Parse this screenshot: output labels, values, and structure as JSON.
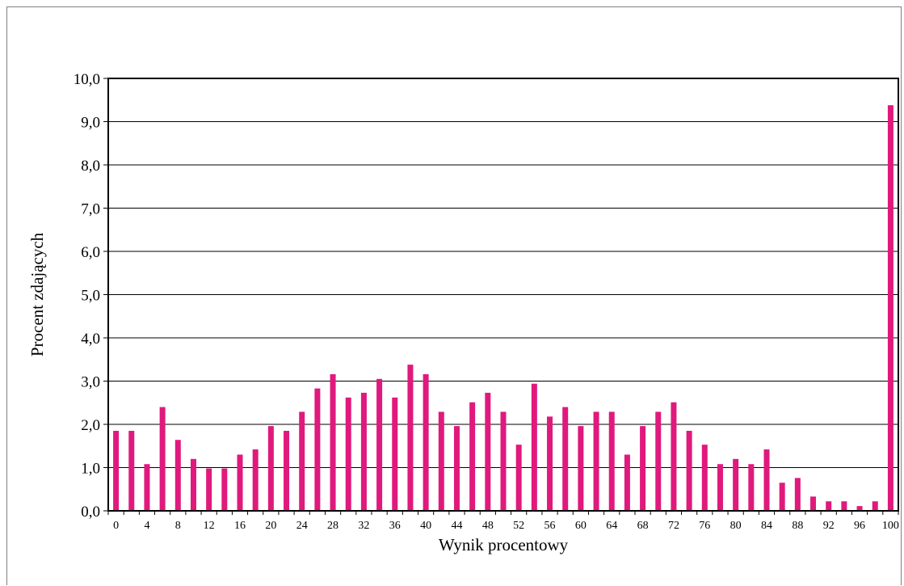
{
  "chart_data": {
    "type": "bar",
    "title": "",
    "xlabel": "Wynik procentowy",
    "ylabel": "Procent zdających",
    "ylim": [
      0,
      10
    ],
    "y_ticks": [
      "0,0",
      "1,0",
      "2,0",
      "3,0",
      "4,0",
      "5,0",
      "6,0",
      "7,0",
      "8,0",
      "9,0",
      "10,0"
    ],
    "grid": "horizontal",
    "bar_color": "#E0197D",
    "categories": [
      "0",
      "2",
      "4",
      "6",
      "8",
      "10",
      "12",
      "14",
      "16",
      "18",
      "20",
      "22",
      "24",
      "26",
      "28",
      "30",
      "32",
      "34",
      "36",
      "38",
      "40",
      "42",
      "44",
      "46",
      "48",
      "50",
      "52",
      "54",
      "56",
      "58",
      "60",
      "62",
      "64",
      "66",
      "68",
      "70",
      "72",
      "74",
      "76",
      "78",
      "80",
      "82",
      "84",
      "86",
      "88",
      "90",
      "92",
      "94",
      "96",
      "98",
      "100"
    ],
    "x_tick_labels": [
      "0",
      "4",
      "8",
      "12",
      "16",
      "20",
      "24",
      "28",
      "32",
      "36",
      "40",
      "44",
      "48",
      "52",
      "56",
      "60",
      "64",
      "68",
      "72",
      "76",
      "80",
      "84",
      "88",
      "92",
      "96",
      "100"
    ],
    "values": [
      1.85,
      1.85,
      1.08,
      2.4,
      1.64,
      1.2,
      0.98,
      0.98,
      1.3,
      1.42,
      1.96,
      1.85,
      2.29,
      2.83,
      3.16,
      2.62,
      2.73,
      3.05,
      2.62,
      3.38,
      3.16,
      2.29,
      1.96,
      2.51,
      2.73,
      2.29,
      1.53,
      2.94,
      2.18,
      2.4,
      1.96,
      2.29,
      2.29,
      1.3,
      1.96,
      2.29,
      2.51,
      1.85,
      1.53,
      1.08,
      1.2,
      1.08,
      1.42,
      0.65,
      0.76,
      0.33,
      0.22,
      0.22,
      0.11,
      0.22,
      9.38
    ]
  }
}
